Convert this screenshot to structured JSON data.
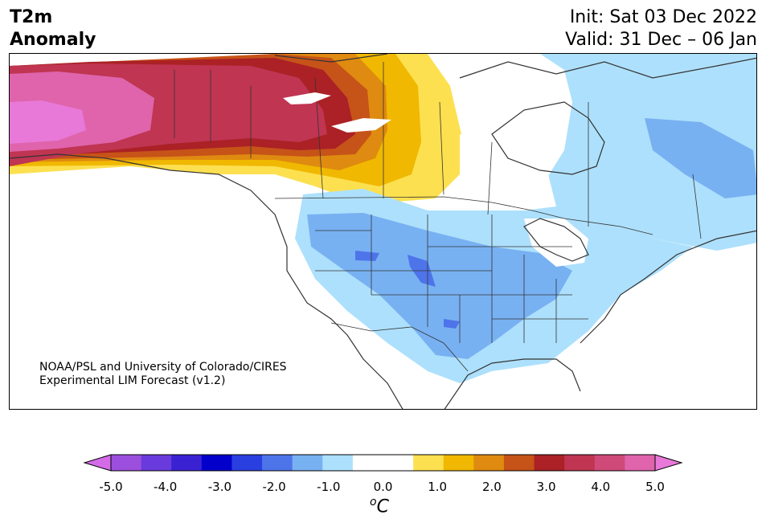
{
  "header": {
    "title_line1": "T2m",
    "title_line2": "Anomaly",
    "init": "Init: Sat 03 Dec 2022",
    "valid": "Valid: 31 Dec – 06 Jan"
  },
  "credit": {
    "line1": "NOAA/PSL and University of Colorado/CIRES",
    "line2": "Experimental LIM Forecast (v1.2)"
  },
  "colorbar": {
    "colors": [
      "#d36be8",
      "#9c4fdd",
      "#6a3bdc",
      "#3a22d3",
      "#0300cc",
      "#2a3fe0",
      "#4e74ea",
      "#78b1f2",
      "#ade0fc",
      "#ffffff",
      "#ffffff",
      "#fde050",
      "#f0b800",
      "#df8a10",
      "#c65318",
      "#ab2125",
      "#bf3552",
      "#cf4a79",
      "#df64ac",
      "#e879d8"
    ],
    "ticks": [
      "-5.0",
      "-4.0",
      "-3.0",
      "-2.0",
      "-1.0",
      "0.0",
      "1.0",
      "2.0",
      "3.0",
      "4.0",
      "5.0"
    ],
    "unit": "C",
    "unit_prefix": "o"
  },
  "map": {
    "region": "North America",
    "variable": "2-meter temperature anomaly"
  }
}
